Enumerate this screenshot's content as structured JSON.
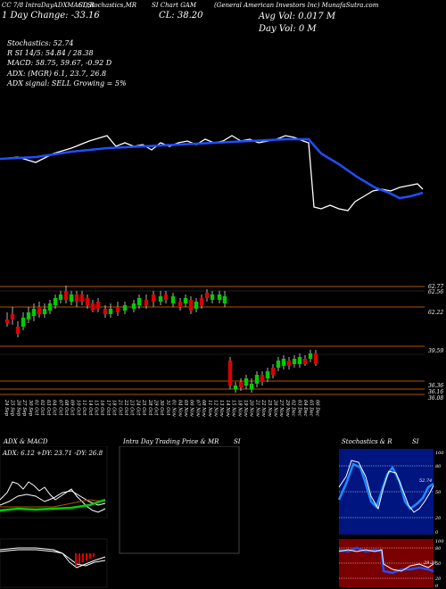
{
  "header": {
    "top_left_1": "CC 7/8 IntraDayADXMACD,R",
    "top_left_2": "SI,Stochastics,MR",
    "top_left_3": "SI Chart GAM",
    "top_right": "(General American Investors Inc) MunafaSutra.com",
    "day_change": "1 Day Change: -33.16",
    "close": "CL: 38.20",
    "avg_vol": "Avg Vol: 0.017 M",
    "day_vol": "Day Vol: 0   M",
    "stochastics": "Stochastics: 52.74",
    "rsi": "R          SI 14/5: 54.84 / 28.38",
    "macd": "MACD: 58.75, 59.67, -0.92  D",
    "adx": "ADX:                   (MGR) 6.1, 23.7, 26.8",
    "adx_signal": "ADX  signal: SELL  Growing = 5%"
  },
  "price_axis": [
    "62.77",
    "62.56",
    "62.22",
    "39.59",
    "36.36",
    "36.16",
    "36.08"
  ],
  "date_labels": [
    "24 Sep",
    "25 Sep",
    "26 Sep",
    "27 Sep",
    "30 Sep",
    "01 Oct",
    "02 Oct",
    "03 Oct",
    "04 Oct",
    "07 Oct",
    "08 Oct",
    "09 Oct",
    "10 Oct",
    "11 Oct",
    "14 Oct",
    "15 Oct",
    "16 Oct",
    "17 Oct",
    "18 Oct",
    "21 Oct",
    "22 Oct",
    "23 Oct",
    "24 Oct",
    "25 Oct",
    "28 Oct",
    "29 Oct",
    "30 Oct",
    "31 Oct",
    "01 Nov",
    "04 Nov",
    "05 Nov",
    "06 Nov",
    "07 Nov",
    "08 Nov",
    "11 Nov",
    "12 Nov",
    "13 Nov",
    "14 Nov",
    "15 Nov",
    "18 Nov",
    "19 Nov",
    "20 Nov",
    "21 Nov",
    "22 Nov",
    "25 Nov",
    "26 Nov",
    "27 Nov",
    "29 Nov",
    "02 Dec",
    "03 Dec",
    "04 Dec",
    "05 Dec",
    "06 Dec"
  ],
  "panels": {
    "adx_title": "ADX  & MACD",
    "adx_values": "ADX: 6.12  +DY: 23.71  -DY: 26.8",
    "intraday_title": "Intra Day Trading Price  & MR",
    "intraday_title2": "SI",
    "stoch_title": "Stochastics & R",
    "stoch_title2": "SI",
    "stoch_axis": [
      "100",
      "80",
      "50",
      "20",
      "0"
    ],
    "rsi_axis": [
      "100",
      "80",
      "50",
      "20",
      "0"
    ],
    "stoch_end": "52.74",
    "rsi_end": "28.38"
  },
  "colors": {
    "green": "#00cc00",
    "red": "#dd0000",
    "blue": "#1f4fff",
    "orange": "#b15500",
    "navy": "#001580",
    "maroon": "#7a0000"
  }
}
